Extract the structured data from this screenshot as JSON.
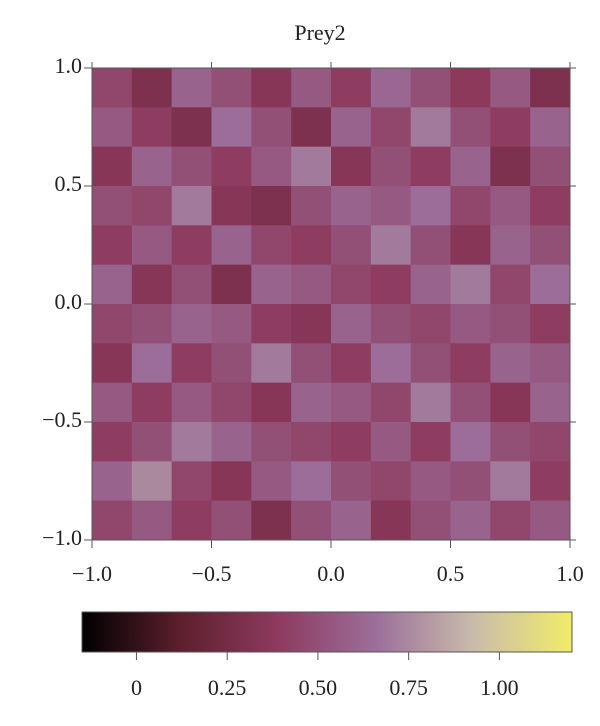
{
  "chart_data": {
    "type": "heatmap",
    "title": "Prey2",
    "xlim": [
      -1,
      1
    ],
    "ylim": [
      -1,
      1
    ],
    "xticks": [
      {
        "value": -1,
        "label": "−1.0"
      },
      {
        "value": -0.5,
        "label": "−0.5"
      },
      {
        "value": 0,
        "label": "0.0"
      },
      0.5,
      {
        "value": 1,
        "label": "1.0"
      }
    ],
    "yticks": [
      {
        "value": -1,
        "label": "−1.0"
      },
      {
        "value": -0.5,
        "label": "−0.5"
      },
      {
        "value": 0,
        "label": "0.0"
      },
      0.5,
      {
        "value": 1,
        "label": "1.0"
      }
    ],
    "z": [
      [
        0.45,
        0.3,
        0.6,
        0.5,
        0.35,
        0.55,
        0.4,
        0.62,
        0.5,
        0.38,
        0.55,
        0.3
      ],
      [
        0.55,
        0.4,
        0.3,
        0.65,
        0.5,
        0.3,
        0.6,
        0.45,
        0.7,
        0.5,
        0.4,
        0.6
      ],
      [
        0.35,
        0.6,
        0.5,
        0.4,
        0.55,
        0.7,
        0.35,
        0.5,
        0.4,
        0.6,
        0.3,
        0.5
      ],
      [
        0.5,
        0.45,
        0.7,
        0.35,
        0.3,
        0.5,
        0.6,
        0.55,
        0.65,
        0.45,
        0.55,
        0.4
      ],
      [
        0.4,
        0.55,
        0.4,
        0.6,
        0.45,
        0.4,
        0.5,
        0.7,
        0.5,
        0.35,
        0.6,
        0.5
      ],
      [
        0.6,
        0.35,
        0.5,
        0.3,
        0.6,
        0.55,
        0.45,
        0.4,
        0.6,
        0.7,
        0.45,
        0.65
      ],
      [
        0.45,
        0.5,
        0.6,
        0.55,
        0.4,
        0.35,
        0.6,
        0.5,
        0.45,
        0.55,
        0.5,
        0.4
      ],
      [
        0.35,
        0.65,
        0.4,
        0.5,
        0.7,
        0.5,
        0.4,
        0.65,
        0.5,
        0.4,
        0.6,
        0.55
      ],
      [
        0.55,
        0.4,
        0.55,
        0.45,
        0.35,
        0.6,
        0.55,
        0.45,
        0.7,
        0.5,
        0.35,
        0.6
      ],
      [
        0.4,
        0.5,
        0.7,
        0.6,
        0.5,
        0.45,
        0.4,
        0.55,
        0.4,
        0.65,
        0.5,
        0.45
      ],
      [
        0.6,
        0.75,
        0.45,
        0.35,
        0.55,
        0.65,
        0.5,
        0.45,
        0.55,
        0.5,
        0.7,
        0.4
      ],
      [
        0.45,
        0.55,
        0.4,
        0.5,
        0.3,
        0.5,
        0.6,
        0.35,
        0.5,
        0.6,
        0.45,
        0.55
      ]
    ],
    "clim": [
      -0.15,
      1.2
    ],
    "colorbar_ticks": [
      0,
      {
        "value": 0.25,
        "label": "0.25"
      },
      {
        "value": 0.5,
        "label": "0.50"
      },
      {
        "value": 0.75,
        "label": "0.75"
      },
      {
        "value": 1,
        "label": "1.00"
      }
    ],
    "colormap": [
      "#000000",
      "#5c1f2e",
      "#8e3a5e",
      "#9b6f9a",
      "#c9bcaa",
      "#f2ec6a"
    ]
  }
}
